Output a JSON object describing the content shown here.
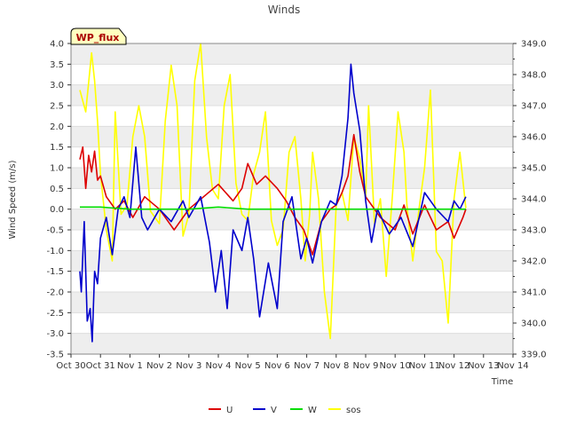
{
  "chart_data": {
    "type": "line",
    "title": "Winds",
    "xlabel": "Time",
    "ylabel": "Wind Speed (m/s)",
    "y2label": "",
    "badge": "WP_flux",
    "x_ticks": [
      "Oct 30",
      "Oct 31",
      "Nov 1",
      "Nov 2",
      "Nov 3",
      "Nov 4",
      "Nov 5",
      "Nov 6",
      "Nov 7",
      "Nov 8",
      "Nov 9",
      "Nov 10",
      "Nov 11",
      "Nov 12",
      "Nov 13",
      "Nov 14"
    ],
    "xlim": [
      0,
      15
    ],
    "ylim": [
      -3.5,
      4.0
    ],
    "y_ticks": [
      "-3.5",
      "-3.0",
      "-2.5",
      "-2.0",
      "-1.5",
      "-1.0",
      "-0.5",
      "0.0",
      "0.5",
      "1.0",
      "1.5",
      "2.0",
      "2.5",
      "3.0",
      "3.5",
      "4.0"
    ],
    "y2lim": [
      339.0,
      349.0
    ],
    "y2_ticks": [
      "339.0",
      "340.0",
      "341.0",
      "342.0",
      "343.0",
      "344.0",
      "345.0",
      "346.0",
      "347.0",
      "348.0",
      "349.0"
    ],
    "grid": true,
    "legend_position": "bottom-center",
    "series": [
      {
        "name": "U",
        "color": "#dd0000",
        "axis": "left",
        "x": [
          0.3,
          0.4,
          0.5,
          0.6,
          0.7,
          0.8,
          0.9,
          1.0,
          1.2,
          1.5,
          1.8,
          2.1,
          2.5,
          3.0,
          3.5,
          4.0,
          4.5,
          5.0,
          5.5,
          5.8,
          6.0,
          6.3,
          6.6,
          7.0,
          7.3,
          7.6,
          7.9,
          8.2,
          8.5,
          8.8,
          9.0,
          9.2,
          9.4,
          9.6,
          9.8,
          10.0,
          10.5,
          11.0,
          11.3,
          11.6,
          12.0,
          12.4,
          12.8,
          13.0,
          13.3,
          13.4
        ],
        "values": [
          1.2,
          1.5,
          0.5,
          1.3,
          0.9,
          1.4,
          0.7,
          0.8,
          0.3,
          0.0,
          0.2,
          -0.2,
          0.3,
          0.0,
          -0.5,
          0.0,
          0.3,
          0.6,
          0.2,
          0.5,
          1.1,
          0.6,
          0.8,
          0.5,
          0.2,
          -0.2,
          -0.5,
          -1.1,
          -0.3,
          0.0,
          0.1,
          0.4,
          0.8,
          1.8,
          0.9,
          0.3,
          -0.2,
          -0.5,
          0.1,
          -0.6,
          0.1,
          -0.5,
          -0.3,
          -0.7,
          -0.2,
          0.0
        ]
      },
      {
        "name": "V",
        "color": "#0000cc",
        "axis": "left",
        "x": [
          0.3,
          0.35,
          0.45,
          0.55,
          0.65,
          0.72,
          0.8,
          0.9,
          1.0,
          1.2,
          1.4,
          1.6,
          1.8,
          2.0,
          2.2,
          2.4,
          2.6,
          3.0,
          3.4,
          3.8,
          4.0,
          4.4,
          4.7,
          4.9,
          5.1,
          5.3,
          5.5,
          5.8,
          6.0,
          6.2,
          6.4,
          6.7,
          7.0,
          7.2,
          7.5,
          7.8,
          8.0,
          8.2,
          8.5,
          8.8,
          9.0,
          9.2,
          9.4,
          9.5,
          9.6,
          9.8,
          10.0,
          10.2,
          10.4,
          10.8,
          11.2,
          11.6,
          12.0,
          12.4,
          12.8,
          13.0,
          13.2,
          13.4
        ],
        "values": [
          -1.5,
          -2.0,
          -0.3,
          -2.7,
          -2.4,
          -3.2,
          -1.5,
          -1.8,
          -0.7,
          -0.2,
          -1.1,
          0.0,
          0.3,
          -0.2,
          1.5,
          -0.2,
          -0.5,
          0.0,
          -0.3,
          0.2,
          -0.2,
          0.3,
          -0.8,
          -2.0,
          -1.0,
          -2.4,
          -0.5,
          -1.0,
          -0.2,
          -1.2,
          -2.6,
          -1.3,
          -2.4,
          -0.3,
          0.3,
          -1.2,
          -0.7,
          -1.3,
          -0.3,
          0.2,
          0.1,
          0.8,
          2.2,
          3.5,
          2.8,
          1.9,
          0.2,
          -0.8,
          0.0,
          -0.6,
          -0.2,
          -0.9,
          0.4,
          0.0,
          -0.3,
          0.2,
          0.0,
          0.3
        ]
      },
      {
        "name": "W",
        "color": "#00dd00",
        "axis": "left",
        "x": [
          0.3,
          1.0,
          2.0,
          3.0,
          4.0,
          5.0,
          6.0,
          7.0,
          8.0,
          9.0,
          10.0,
          11.0,
          12.0,
          13.0,
          13.4
        ],
        "values": [
          0.05,
          0.05,
          0.0,
          0.0,
          0.0,
          0.05,
          0.0,
          0.0,
          0.0,
          0.0,
          0.0,
          0.0,
          0.0,
          0.0,
          0.0
        ]
      },
      {
        "name": "sos",
        "color": "#ffff00",
        "axis": "right",
        "x": [
          0.3,
          0.5,
          0.7,
          0.8,
          0.9,
          1.0,
          1.2,
          1.4,
          1.5,
          1.7,
          1.9,
          2.1,
          2.3,
          2.5,
          2.7,
          3.0,
          3.2,
          3.4,
          3.6,
          3.8,
          4.0,
          4.2,
          4.4,
          4.6,
          4.8,
          5.0,
          5.2,
          5.4,
          5.6,
          5.8,
          6.0,
          6.2,
          6.4,
          6.6,
          6.8,
          7.0,
          7.2,
          7.4,
          7.6,
          7.8,
          7.95,
          8.1,
          8.2,
          8.4,
          8.6,
          8.8,
          9.0,
          9.2,
          9.4,
          9.6,
          9.8,
          10.0,
          10.1,
          10.3,
          10.5,
          10.7,
          10.9,
          11.1,
          11.3,
          11.4,
          11.6,
          11.8,
          12.0,
          12.2,
          12.4,
          12.6,
          12.8,
          13.0,
          13.2,
          13.4
        ],
        "values": [
          347.5,
          346.8,
          348.7,
          347.8,
          346.5,
          344.8,
          343.0,
          342.0,
          346.8,
          343.5,
          343.8,
          346.0,
          347.0,
          346.0,
          343.6,
          343.2,
          346.5,
          348.3,
          347.0,
          342.8,
          343.5,
          347.8,
          349.0,
          346.0,
          344.3,
          344.0,
          347.0,
          348.0,
          344.5,
          343.5,
          343.3,
          344.8,
          345.5,
          346.8,
          343.3,
          342.5,
          343.0,
          345.5,
          346.0,
          344.0,
          342.0,
          343.5,
          345.5,
          344.0,
          341.0,
          339.5,
          343.8,
          344.2,
          343.3,
          346.0,
          345.3,
          344.0,
          347.0,
          343.2,
          344.0,
          341.5,
          344.0,
          346.8,
          345.5,
          343.8,
          342.0,
          343.6,
          345.0,
          347.5,
          342.3,
          342.0,
          340.0,
          344.0,
          345.5,
          343.7
        ]
      }
    ]
  }
}
